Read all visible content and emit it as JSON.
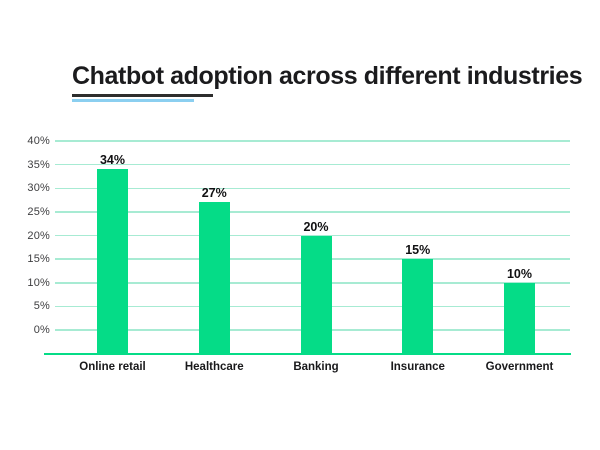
{
  "page": {
    "background_color": "#ffffff"
  },
  "header": {
    "title": "Chatbot adoption across different industries",
    "title_color": "#1b1b1d",
    "underline_dark_color": "#2d2d2d",
    "underline_blue_color": "#8bcff0"
  },
  "chart_data": {
    "type": "bar",
    "title": "Chatbot adoption across different industries",
    "categories": [
      "Online retail",
      "Healthcare",
      "Banking",
      "Insurance",
      "Government"
    ],
    "values": [
      34,
      27,
      20,
      15,
      10
    ],
    "value_labels": [
      "34%",
      "27%",
      "20%",
      "15%",
      "10%"
    ],
    "y_ticks": [
      {
        "value": 40,
        "label": "40%"
      },
      {
        "value": 35,
        "label": "35%"
      },
      {
        "value": 30,
        "label": "30%"
      },
      {
        "value": 25,
        "label": "25%"
      },
      {
        "value": 20,
        "label": "20%"
      },
      {
        "value": 15,
        "label": "15%"
      },
      {
        "value": 10,
        "label": "10%"
      },
      {
        "value": 5,
        "label": "5%"
      },
      {
        "value": 0,
        "label": "0%"
      }
    ],
    "ylim": [
      0,
      40
    ],
    "xlabel": "",
    "ylabel": "",
    "grid": true,
    "legend": false,
    "bar_color": "#05dc87",
    "gridline_color": "#a7ebd3",
    "axis_line_color": "#05dc87",
    "value_label_color": "#111113",
    "tick_label_color": "#3e3e40"
  }
}
